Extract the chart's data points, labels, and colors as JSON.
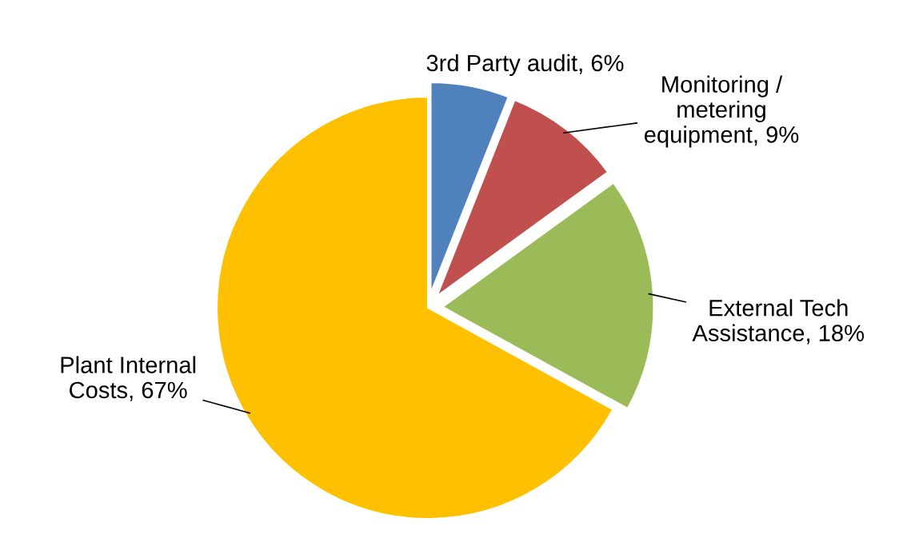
{
  "chart_data": {
    "type": "pie",
    "categories": [
      "3rd Party audit",
      "Monitoring /\nmetering\nequipment",
      "External Tech\nAssistance",
      "Plant Internal\nCosts"
    ],
    "values": [
      6,
      9,
      18,
      67
    ],
    "value_labels": [
      "6%",
      "9%",
      "18%",
      "67%"
    ],
    "colors": [
      "#4f81bd",
      "#c0504d",
      "#9bbb59",
      "#ffc000"
    ],
    "legend": false
  }
}
